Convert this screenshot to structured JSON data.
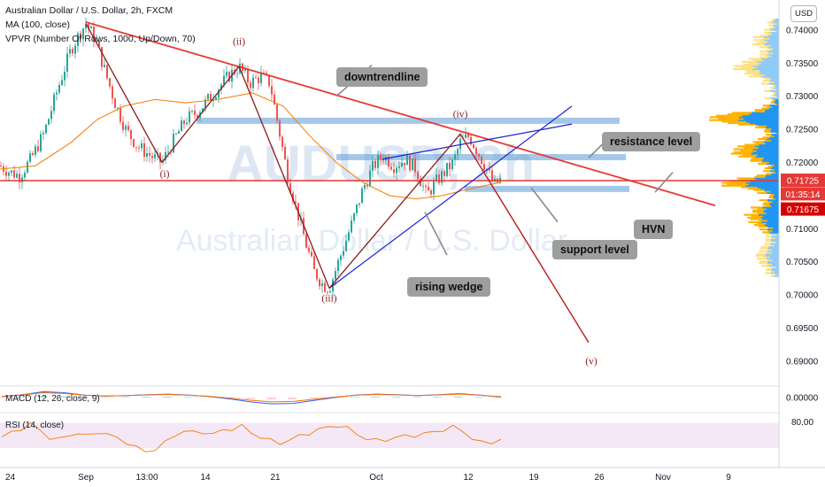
{
  "header": {
    "symbol_line": "Australian Dollar / U.S. Dollar, 2h, FXCM",
    "ma_line": "MA (100, close)",
    "vpvr_line": "VPVR (Number Of Rows, 1000, Up/Down, 70)"
  },
  "currency_button": "USD",
  "watermark": {
    "ticker": "AUDUSD, 2h",
    "name": "Australian Dollar / U.S. Dollar"
  },
  "annotations": {
    "downtrendline": "downtrendline",
    "resistance": "resistance level",
    "support": "support level",
    "hvn": "HVN",
    "rising_wedge": "rising wedge"
  },
  "colors": {
    "up_candle": "#26a69a",
    "down_candle": "#ef5350",
    "ma": "#f57c00",
    "trendline": "#e53935",
    "wedge": "#1a23c9",
    "zone": "#5b9bd5",
    "vp_main": "#2196f3",
    "vp_light": "#90caf9",
    "vp_up": "#ffb300",
    "vp_up_light": "#ffe082",
    "rsi_line": "#f57c00",
    "macd_line": "#2962ff",
    "signal_line": "#ff6d00"
  },
  "chart_data": [
    {
      "type": "line",
      "pane": "price",
      "y_axis": {
        "ticks": [
          0.74,
          0.735,
          0.73,
          0.725,
          0.72,
          0.715,
          0.71,
          0.705,
          0.7,
          0.695,
          0.69
        ],
        "tick_labels": [
          "0.74000",
          "0.73500",
          "0.73000",
          "0.72500",
          "0.72000",
          "0.71500",
          "0.71000",
          "0.70500",
          "0.70000",
          "0.69500",
          "0.69000"
        ],
        "ylim": [
          0.6865,
          0.744
        ],
        "badges": [
          {
            "label": "0.71725",
            "value": 0.71725,
            "color": "#e53935"
          },
          {
            "label": "01:35:14",
            "value": 0.7152,
            "color": "#e53935"
          },
          {
            "label": "0.71675",
            "value": 0.7129,
            "color": "#d50000"
          }
        ]
      },
      "x_axis": {
        "labels": [
          "24",
          "Sep",
          "13:00",
          "14",
          "21",
          "Oct",
          "12",
          "19",
          "26",
          "Nov",
          "9"
        ],
        "positions": [
          6,
          97,
          166,
          232,
          311,
          425,
          529,
          603,
          677,
          749,
          823
        ],
        "xlim": [
          0,
          880
        ]
      },
      "price_path": [
        [
          0,
          0.7195
        ],
        [
          12,
          0.7185
        ],
        [
          22,
          0.718
        ],
        [
          35,
          0.7205
        ],
        [
          50,
          0.7245
        ],
        [
          65,
          0.731
        ],
        [
          80,
          0.737
        ],
        [
          90,
          0.7395
        ],
        [
          97,
          0.741
        ],
        [
          108,
          0.7385
        ],
        [
          118,
          0.734
        ],
        [
          130,
          0.729
        ],
        [
          142,
          0.725
        ],
        [
          155,
          0.7225
        ],
        [
          170,
          0.721
        ],
        [
          183,
          0.72
        ],
        [
          197,
          0.7235
        ],
        [
          210,
          0.7265
        ],
        [
          222,
          0.7275
        ],
        [
          232,
          0.729
        ],
        [
          245,
          0.731
        ],
        [
          258,
          0.733
        ],
        [
          270,
          0.7345
        ],
        [
          282,
          0.732
        ],
        [
          295,
          0.733
        ],
        [
          305,
          0.732
        ],
        [
          315,
          0.725
        ],
        [
          325,
          0.718
        ],
        [
          335,
          0.713
        ],
        [
          345,
          0.708
        ],
        [
          355,
          0.7035
        ],
        [
          365,
          0.7015
        ],
        [
          372,
          0.701
        ],
        [
          385,
          0.706
        ],
        [
          398,
          0.711
        ],
        [
          410,
          0.716
        ],
        [
          422,
          0.7195
        ],
        [
          433,
          0.721
        ],
        [
          445,
          0.7195
        ],
        [
          458,
          0.7205
        ],
        [
          470,
          0.719
        ],
        [
          482,
          0.715
        ],
        [
          492,
          0.717
        ],
        [
          502,
          0.7185
        ],
        [
          512,
          0.72
        ],
        [
          520,
          0.723
        ],
        [
          530,
          0.724
        ],
        [
          540,
          0.7215
        ],
        [
          550,
          0.719
        ],
        [
          558,
          0.7165
        ],
        [
          566,
          0.7175
        ]
      ],
      "ma_path": [
        [
          0,
          0.719
        ],
        [
          40,
          0.7195
        ],
        [
          80,
          0.723
        ],
        [
          110,
          0.7265
        ],
        [
          140,
          0.7285
        ],
        [
          175,
          0.7295
        ],
        [
          210,
          0.729
        ],
        [
          245,
          0.7295
        ],
        [
          285,
          0.7305
        ],
        [
          320,
          0.7285
        ],
        [
          350,
          0.724
        ],
        [
          380,
          0.72
        ],
        [
          410,
          0.717
        ],
        [
          440,
          0.715
        ],
        [
          470,
          0.7145
        ],
        [
          500,
          0.715
        ],
        [
          530,
          0.716
        ],
        [
          566,
          0.717
        ]
      ],
      "wave_path": [
        [
          97,
          0.741
        ],
        [
          183,
          0.72
        ],
        [
          270,
          0.7345
        ],
        [
          372,
          0.701
        ],
        [
          520,
          0.7243
        ],
        [
          665,
          0.6928
        ]
      ],
      "wave_labels": [
        {
          "text": "(i)",
          "x": 186,
          "y": 0.7178
        },
        {
          "text": "(ii)",
          "x": 270,
          "y": 0.7378
        },
        {
          "text": "(iii)",
          "x": 372,
          "y": 0.699
        },
        {
          "text": "(iv)",
          "x": 520,
          "y": 0.7268
        },
        {
          "text": "(v)",
          "x": 668,
          "y": 0.6895
        }
      ],
      "downtrend_line": [
        [
          97,
          0.7412
        ],
        [
          808,
          0.7135
        ]
      ],
      "horizontal_line": 0.71725,
      "wedge_lines": [
        {
          "from": [
            372,
            0.701
          ],
          "to": [
            646,
            0.7285
          ]
        },
        {
          "from": [
            432,
            0.7205
          ],
          "to": [
            646,
            0.7258
          ]
        }
      ],
      "zones": [
        {
          "x1": 222,
          "x2": 700,
          "y": 0.7263
        },
        {
          "x1": 380,
          "x2": 707,
          "y": 0.7208
        },
        {
          "x1": 525,
          "x2": 711,
          "y": 0.716
        }
      ],
      "annotation_arrows": [
        {
          "from": [
            420,
            0.7347
          ],
          "to": [
            380,
            0.73
          ]
        },
        {
          "from": [
            690,
            0.724
          ],
          "to": [
            665,
            0.7207
          ]
        },
        {
          "from": [
            630,
            0.711
          ],
          "to": [
            600,
            0.7162
          ]
        },
        {
          "from": [
            740,
            0.7155
          ],
          "to": [
            760,
            0.7185
          ]
        },
        {
          "from": [
            505,
            0.706
          ],
          "to": [
            480,
            0.7125
          ]
        }
      ]
    },
    {
      "type": "line",
      "pane": "macd",
      "y_axis": {
        "tick_labels": [
          "0.00000"
        ],
        "ticks": [
          0
        ]
      },
      "series": [
        {
          "values": [
            0.2,
            0.6,
            1.2,
            1.0,
            0.5,
            0.3,
            0.4,
            0.6,
            0.7,
            0.5,
            0.2,
            -0.3,
            -0.9,
            -1.3,
            -1.2,
            -0.6,
            0.0,
            0.5,
            0.7,
            0.6,
            0.4,
            0.6,
            0.8,
            0.5,
            0.1
          ]
        }
      ],
      "ylim": [
        -2,
        2
      ]
    },
    {
      "type": "line",
      "pane": "rsi",
      "y_axis": {
        "tick_labels": [
          "80.00"
        ],
        "ticks": [
          80
        ]
      },
      "band": [
        30,
        70
      ],
      "series": [
        {
          "values": [
            55,
            62,
            70,
            78,
            66,
            54,
            50,
            58,
            62,
            56,
            64,
            60,
            52,
            46,
            36,
            28,
            34,
            44,
            58,
            66,
            62,
            64,
            60,
            66,
            70,
            74,
            62,
            55,
            48,
            44,
            50,
            56,
            62,
            68,
            72,
            76,
            70,
            60,
            52,
            48,
            50,
            54,
            56,
            58,
            60,
            64,
            68,
            72,
            66,
            52,
            44,
            46,
            50
          ]
        }
      ],
      "ylim": [
        10,
        95
      ]
    }
  ]
}
